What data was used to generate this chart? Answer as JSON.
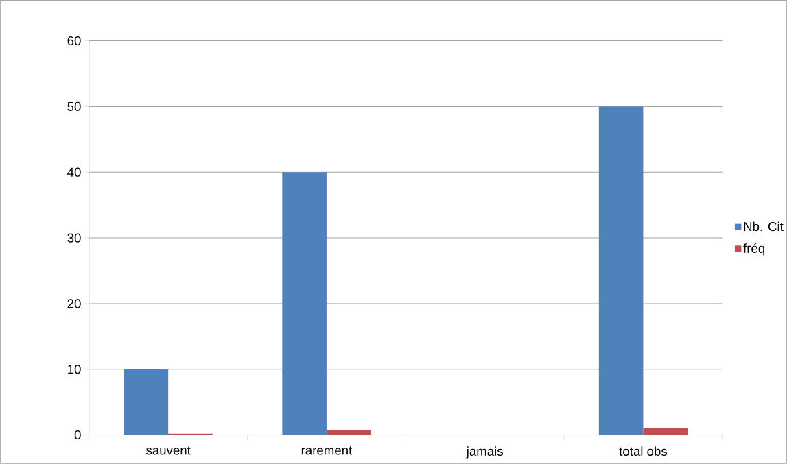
{
  "chart_data": {
    "type": "bar",
    "categories": [
      "sauvent",
      "rarement",
      "jamais",
      "total obs"
    ],
    "series": [
      {
        "name": "Nb. Cit",
        "color": "#4f81bd",
        "values": [
          10,
          40,
          0,
          50
        ]
      },
      {
        "name": "fréq",
        "color": "#c0504d",
        "values": [
          0.2,
          0.8,
          0,
          1
        ]
      }
    ],
    "ylim": [
      0,
      60
    ],
    "yticks": [
      0,
      10,
      20,
      30,
      40,
      50,
      60
    ],
    "grid": "y",
    "legend": "right"
  }
}
